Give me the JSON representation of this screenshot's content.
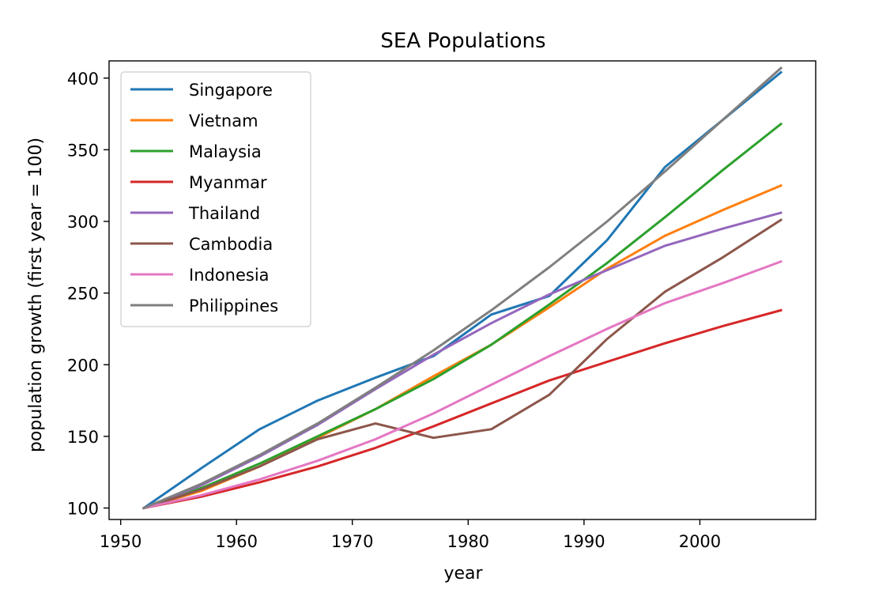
{
  "chart_data": {
    "type": "line",
    "title": "SEA Populations",
    "xlabel": "year",
    "ylabel": "population growth (first year = 100)",
    "xlim": [
      1949,
      2010
    ],
    "ylim": [
      92,
      412
    ],
    "xticks": [
      1950,
      1960,
      1970,
      1980,
      1990,
      2000
    ],
    "yticks": [
      100,
      150,
      200,
      250,
      300,
      350,
      400
    ],
    "grid": false,
    "legend_position": "upper-left",
    "x": [
      1952,
      1957,
      1962,
      1967,
      1972,
      1977,
      1982,
      1987,
      1992,
      1997,
      2002,
      2007
    ],
    "series": [
      {
        "name": "Singapore",
        "color": "#1f77b4",
        "values": [
          100,
          128,
          155,
          175,
          191,
          206,
          235,
          248,
          287,
          338,
          371,
          404
        ]
      },
      {
        "name": "Vietnam",
        "color": "#ff7f0e",
        "values": [
          100,
          112,
          129,
          149,
          169,
          192,
          214,
          240,
          267,
          290,
          308,
          325
        ]
      },
      {
        "name": "Malaysia",
        "color": "#2ca02c",
        "values": [
          100,
          114,
          131,
          150,
          169,
          190,
          214,
          242,
          271,
          303,
          336,
          368
        ]
      },
      {
        "name": "Myanmar",
        "color": "#d62728",
        "values": [
          100,
          108,
          118,
          129,
          142,
          157,
          173,
          189,
          202,
          215,
          227,
          238
        ]
      },
      {
        "name": "Thailand",
        "color": "#9467bd",
        "values": [
          100,
          116,
          136,
          158,
          183,
          207,
          229,
          249,
          266,
          283,
          295,
          306
        ]
      },
      {
        "name": "Cambodia",
        "color": "#8c564b",
        "values": [
          100,
          113,
          129,
          148,
          159,
          149,
          155,
          179,
          218,
          251,
          275,
          301
        ]
      },
      {
        "name": "Indonesia",
        "color": "#e377c2",
        "values": [
          100,
          109,
          120,
          133,
          148,
          166,
          186,
          206,
          225,
          243,
          257,
          272
        ]
      },
      {
        "name": "Philippines",
        "color": "#7f7f7f",
        "values": [
          100,
          117,
          137,
          159,
          184,
          210,
          238,
          268,
          300,
          335,
          371,
          407
        ]
      }
    ]
  }
}
